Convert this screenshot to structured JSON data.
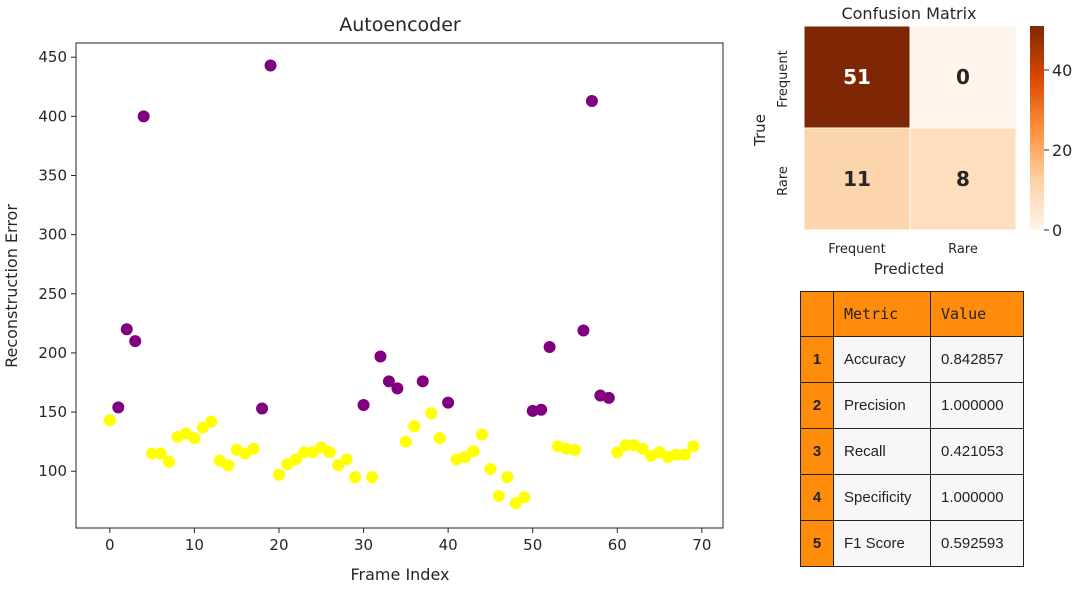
{
  "chart_data": [
    {
      "type": "scatter",
      "title": "Autoencoder",
      "xlabel": "Frame Index",
      "ylabel": "Reconstruction Error",
      "xlim": [
        -4,
        72.5
      ],
      "ylim": [
        52,
        462
      ],
      "xticks": [
        "0",
        "10",
        "20",
        "30",
        "40",
        "50",
        "60",
        "70"
      ],
      "yticks": [
        "100",
        "150",
        "200",
        "250",
        "300",
        "350",
        "400",
        "450"
      ],
      "grid": false,
      "colors": {
        "yellow": "#ffff00",
        "purple": "#800080"
      },
      "points": [
        {
          "x": 0,
          "y": 143,
          "c": "yellow"
        },
        {
          "x": 1,
          "y": 154,
          "c": "purple"
        },
        {
          "x": 2,
          "y": 220,
          "c": "purple"
        },
        {
          "x": 3,
          "y": 210,
          "c": "purple"
        },
        {
          "x": 4,
          "y": 400,
          "c": "purple"
        },
        {
          "x": 5,
          "y": 115,
          "c": "yellow"
        },
        {
          "x": 6,
          "y": 115,
          "c": "yellow"
        },
        {
          "x": 7,
          "y": 108,
          "c": "yellow"
        },
        {
          "x": 8,
          "y": 129,
          "c": "yellow"
        },
        {
          "x": 9,
          "y": 132,
          "c": "yellow"
        },
        {
          "x": 10,
          "y": 128,
          "c": "yellow"
        },
        {
          "x": 11,
          "y": 137,
          "c": "yellow"
        },
        {
          "x": 12,
          "y": 142,
          "c": "yellow"
        },
        {
          "x": 13,
          "y": 109,
          "c": "yellow"
        },
        {
          "x": 14,
          "y": 105,
          "c": "yellow"
        },
        {
          "x": 15,
          "y": 118,
          "c": "yellow"
        },
        {
          "x": 16,
          "y": 115,
          "c": "yellow"
        },
        {
          "x": 17,
          "y": 119,
          "c": "yellow"
        },
        {
          "x": 18,
          "y": 153,
          "c": "purple"
        },
        {
          "x": 19,
          "y": 443,
          "c": "purple"
        },
        {
          "x": 20,
          "y": 97,
          "c": "yellow"
        },
        {
          "x": 21,
          "y": 106,
          "c": "yellow"
        },
        {
          "x": 22,
          "y": 110,
          "c": "yellow"
        },
        {
          "x": 23,
          "y": 116,
          "c": "yellow"
        },
        {
          "x": 24,
          "y": 116,
          "c": "yellow"
        },
        {
          "x": 25,
          "y": 120,
          "c": "yellow"
        },
        {
          "x": 26,
          "y": 116,
          "c": "yellow"
        },
        {
          "x": 27,
          "y": 105,
          "c": "yellow"
        },
        {
          "x": 28,
          "y": 110,
          "c": "yellow"
        },
        {
          "x": 29,
          "y": 95,
          "c": "yellow"
        },
        {
          "x": 30,
          "y": 156,
          "c": "purple"
        },
        {
          "x": 31,
          "y": 95,
          "c": "yellow"
        },
        {
          "x": 32,
          "y": 197,
          "c": "purple"
        },
        {
          "x": 33,
          "y": 176,
          "c": "purple"
        },
        {
          "x": 34,
          "y": 170,
          "c": "purple"
        },
        {
          "x": 35,
          "y": 125,
          "c": "yellow"
        },
        {
          "x": 36,
          "y": 138,
          "c": "yellow"
        },
        {
          "x": 37,
          "y": 176,
          "c": "purple"
        },
        {
          "x": 38,
          "y": 149,
          "c": "yellow"
        },
        {
          "x": 39,
          "y": 128,
          "c": "yellow"
        },
        {
          "x": 40,
          "y": 158,
          "c": "purple"
        },
        {
          "x": 41,
          "y": 110,
          "c": "yellow"
        },
        {
          "x": 42,
          "y": 112,
          "c": "yellow"
        },
        {
          "x": 43,
          "y": 117,
          "c": "yellow"
        },
        {
          "x": 44,
          "y": 131,
          "c": "yellow"
        },
        {
          "x": 45,
          "y": 102,
          "c": "yellow"
        },
        {
          "x": 46,
          "y": 79,
          "c": "yellow"
        },
        {
          "x": 47,
          "y": 95,
          "c": "yellow"
        },
        {
          "x": 48,
          "y": 73,
          "c": "yellow"
        },
        {
          "x": 49,
          "y": 78,
          "c": "yellow"
        },
        {
          "x": 50,
          "y": 151,
          "c": "purple"
        },
        {
          "x": 51,
          "y": 152,
          "c": "purple"
        },
        {
          "x": 52,
          "y": 205,
          "c": "purple"
        },
        {
          "x": 53,
          "y": 121,
          "c": "yellow"
        },
        {
          "x": 54,
          "y": 119,
          "c": "yellow"
        },
        {
          "x": 55,
          "y": 118,
          "c": "yellow"
        },
        {
          "x": 56,
          "y": 219,
          "c": "purple"
        },
        {
          "x": 57,
          "y": 413,
          "c": "purple"
        },
        {
          "x": 58,
          "y": 164,
          "c": "purple"
        },
        {
          "x": 59,
          "y": 162,
          "c": "purple"
        },
        {
          "x": 60,
          "y": 116,
          "c": "yellow"
        },
        {
          "x": 61,
          "y": 122,
          "c": "yellow"
        },
        {
          "x": 62,
          "y": 122,
          "c": "yellow"
        },
        {
          "x": 63,
          "y": 119,
          "c": "yellow"
        },
        {
          "x": 64,
          "y": 113,
          "c": "yellow"
        },
        {
          "x": 65,
          "y": 116,
          "c": "yellow"
        },
        {
          "x": 66,
          "y": 112,
          "c": "yellow"
        },
        {
          "x": 67,
          "y": 114,
          "c": "yellow"
        },
        {
          "x": 68,
          "y": 114,
          "c": "yellow"
        },
        {
          "x": 69,
          "y": 121,
          "c": "yellow"
        }
      ]
    },
    {
      "type": "heatmap",
      "title": "Confusion Matrix",
      "xlabel": "Predicted",
      "ylabel": "True",
      "row_labels": [
        "Frequent",
        "Rare"
      ],
      "col_labels": [
        "Frequent",
        "Rare"
      ],
      "values": [
        [
          51,
          0
        ],
        [
          11,
          8
        ]
      ],
      "colorbar_ticks": [
        "40",
        "20",
        "0"
      ],
      "colorbar_range": [
        0,
        51
      ],
      "colormap": [
        "#fff5eb",
        "#fdd0a2",
        "#fd8d3c",
        "#d94801",
        "#7f2704"
      ]
    }
  ],
  "metrics_table": {
    "headers": [
      "",
      "Metric",
      "Value"
    ],
    "rows": [
      {
        "index": "1",
        "metric": "Accuracy",
        "value": "0.842857"
      },
      {
        "index": "2",
        "metric": "Precision",
        "value": "1.000000"
      },
      {
        "index": "3",
        "metric": "Recall",
        "value": "0.421053"
      },
      {
        "index": "4",
        "metric": "Specificity",
        "value": "1.000000"
      },
      {
        "index": "5",
        "metric": "F1 Score",
        "value": "0.592593"
      }
    ],
    "header_color": "#ff8c0a"
  }
}
